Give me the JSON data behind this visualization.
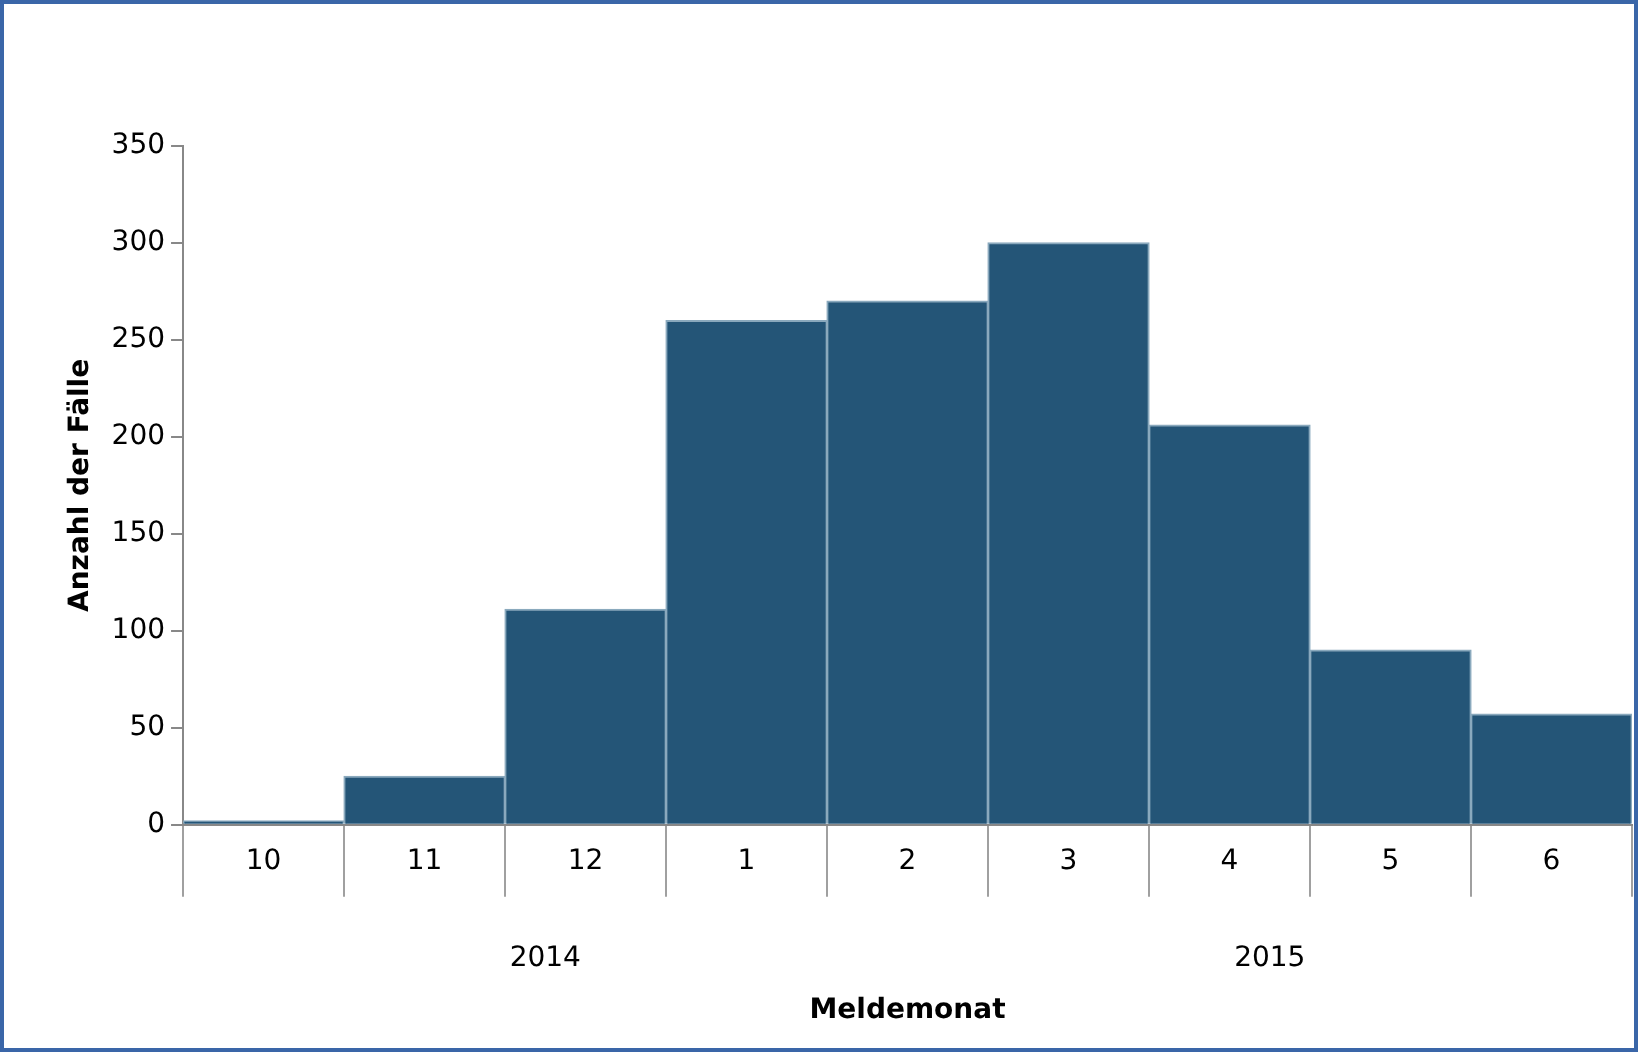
{
  "chart_data": {
    "type": "bar",
    "xlabel": "Meldemonat",
    "ylabel": "Anzahl der Fälle",
    "categories": [
      "10",
      "11",
      "12",
      "1",
      "2",
      "3",
      "4",
      "5",
      "6"
    ],
    "values": [
      2,
      25,
      111,
      260,
      270,
      300,
      206,
      90,
      57
    ],
    "color": "#245577",
    "ylim": [
      0,
      350
    ],
    "yticks": [
      0,
      50,
      100,
      150,
      200,
      250,
      300,
      350
    ],
    "grid": false,
    "annotations": [
      "2014",
      "2015"
    ]
  }
}
